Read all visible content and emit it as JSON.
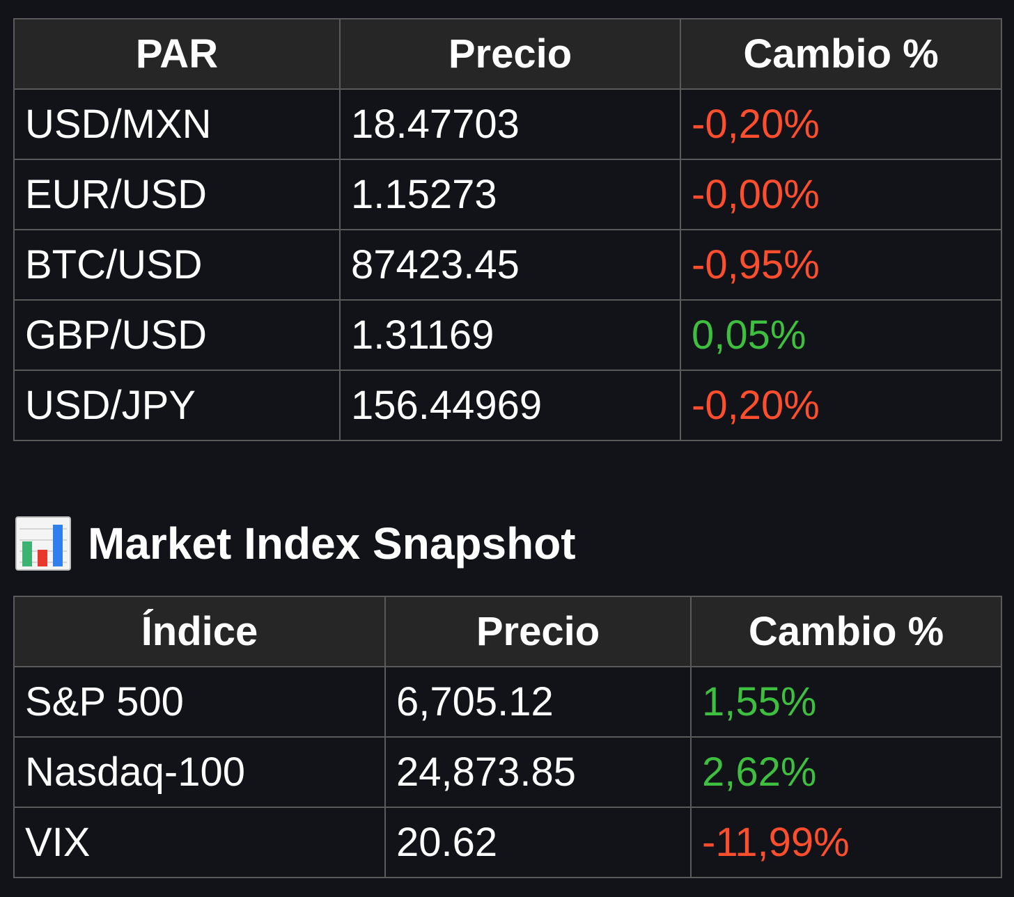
{
  "fx_table": {
    "headers": [
      "PAR",
      "Precio",
      "Cambio %"
    ],
    "rows": [
      {
        "pair": "USD/MXN",
        "price": "18.47703",
        "change": "-0,20%",
        "direction": "down"
      },
      {
        "pair": "EUR/USD",
        "price": "1.15273",
        "change": "-0,00%",
        "direction": "down"
      },
      {
        "pair": "BTC/USD",
        "price": "87423.45",
        "change": "-0,95%",
        "direction": "down"
      },
      {
        "pair": "GBP/USD",
        "price": "1.31169",
        "change": "0,05%",
        "direction": "up"
      },
      {
        "pair": "USD/JPY",
        "price": "156.44969",
        "change": "-0,20%",
        "direction": "down"
      }
    ]
  },
  "index_section": {
    "icon": "bar-chart-icon",
    "title": "Market Index Snapshot"
  },
  "index_table": {
    "headers": [
      "Índice",
      "Precio",
      "Cambio %"
    ],
    "rows": [
      {
        "index": "S&P 500",
        "price": "6,705.12",
        "change": "1,55%",
        "direction": "up"
      },
      {
        "index": "Nasdaq-100",
        "price": "24,873.85",
        "change": "2,62%",
        "direction": "up"
      },
      {
        "index": "VIX",
        "price": "20.62",
        "change": "-11,99%",
        "direction": "down"
      }
    ]
  },
  "colors": {
    "background": "#121319",
    "header_background": "#262626",
    "border": "#5a5a5a",
    "negative": "#ff4e2e",
    "positive": "#3fbf3f"
  }
}
